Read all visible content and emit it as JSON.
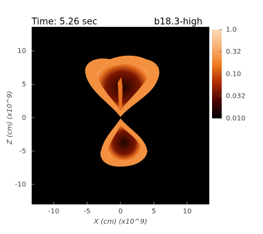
{
  "chart_data": {
    "type": "image",
    "title": "Time: 5.26 sec",
    "subtitle": "b18.3-high",
    "x_label": "X (cm) (x10^9)",
    "y_label": "Z (cm) (x10^9)",
    "xlim": [
      -13.3,
      13.3
    ],
    "xticks": [
      -10,
      -5,
      0,
      5,
      10
    ],
    "ylim": [
      -13,
      13.6
    ],
    "yticks": [
      -10,
      -5,
      0,
      5,
      10
    ],
    "colorbar": {
      "scale": "log",
      "lim": [
        0.01,
        1
      ],
      "ticks": [
        {
          "value": 1,
          "label": "1.0"
        },
        0.32,
        {
          "value": 0.1,
          "label": "0.10"
        },
        0.032,
        {
          "value": 0.01,
          "label": "0.010"
        }
      ],
      "colormap": [
        "#000000",
        "#4a0500",
        "#b02a00",
        "#f07a20",
        "#f8b070",
        "#fbd9b5"
      ]
    }
  }
}
